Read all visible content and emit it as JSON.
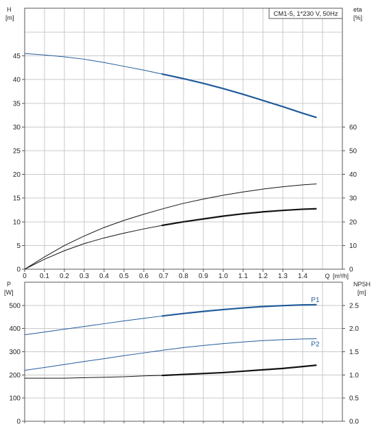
{
  "chart_data": [
    {
      "type": "line",
      "title": "CM1-5, 1*230 V, 50Hz",
      "xlabel": "Q",
      "xunit": "[m³/h]",
      "ylabel_left": "H",
      "yunit_left": "[m]",
      "ylabel_right": "eta",
      "yunit_right": "[%]",
      "xlim": [
        0,
        1.6
      ],
      "ylim_left": [
        0,
        50
      ],
      "ylim_right": [
        0,
        100
      ],
      "x_ticks": [
        "0",
        "0.1",
        "0.2",
        "0.3",
        "0.4",
        "0.5",
        "0.6",
        "0.7",
        "0.8",
        "0.9",
        "1.0",
        "1.1",
        "1.2",
        "1.3",
        "1.4"
      ],
      "y_ticks_left": [
        "0",
        "5",
        "10",
        "15",
        "20",
        "25",
        "30",
        "35",
        "40",
        "45"
      ],
      "y_ticks_right": [
        "0",
        "10",
        "20",
        "30",
        "40",
        "50",
        "60"
      ],
      "grid": true,
      "series": [
        {
          "color": "#1f5a9a",
          "axis": "left",
          "x": [
            0,
            0.1,
            0.2,
            0.3,
            0.4,
            0.5,
            0.6,
            0.7,
            0.8,
            0.9,
            1.0,
            1.1,
            1.2,
            1.3,
            1.4,
            1.47
          ],
          "values": [
            45.5,
            45.2,
            44.8,
            44.3,
            43.6,
            42.8,
            42.0,
            41.1,
            40.2,
            39.2,
            38.1,
            36.9,
            35.6,
            34.3,
            32.9,
            32.0
          ],
          "bold_from": 0.69
        },
        {
          "color": "#111111",
          "axis": "right",
          "x": [
            0,
            0.1,
            0.2,
            0.3,
            0.4,
            0.5,
            0.6,
            0.7,
            0.8,
            0.9,
            1.0,
            1.1,
            1.2,
            1.3,
            1.4,
            1.47
          ],
          "values": [
            0,
            5.2,
            10.0,
            14.0,
            17.6,
            20.6,
            23.2,
            25.6,
            27.8,
            29.6,
            31.2,
            32.6,
            33.8,
            34.8,
            35.6,
            36.0
          ]
        },
        {
          "color": "#111111",
          "axis": "right",
          "x": [
            0,
            0.1,
            0.2,
            0.3,
            0.4,
            0.5,
            0.6,
            0.7,
            0.8,
            0.9,
            1.0,
            1.1,
            1.2,
            1.3,
            1.4,
            1.47
          ],
          "values": [
            0,
            4.2,
            7.8,
            10.8,
            13.2,
            15.2,
            17.0,
            18.6,
            20.0,
            21.2,
            22.4,
            23.4,
            24.2,
            24.8,
            25.3,
            25.5
          ],
          "bold_from": 0.69
        }
      ]
    },
    {
      "type": "line",
      "ylabel_left": "P",
      "yunit_left": "[W]",
      "ylabel_right": "NPSH",
      "yunit_right": "[m]",
      "xlim": [
        0,
        1.6
      ],
      "ylim_left": [
        0,
        600
      ],
      "ylim_right": [
        0,
        3.0
      ],
      "y_ticks_left": [
        "0",
        "100",
        "200",
        "300",
        "400",
        "500"
      ],
      "y_ticks_right": [
        "0.0",
        "0.5",
        "1.0",
        "1.5",
        "2.0",
        "2.5"
      ],
      "grid": true,
      "series": [
        {
          "name": "P1",
          "color": "#1f5a9a",
          "axis": "left",
          "x": [
            0,
            0.1,
            0.2,
            0.3,
            0.4,
            0.5,
            0.6,
            0.7,
            0.8,
            0.9,
            1.0,
            1.1,
            1.2,
            1.3,
            1.4,
            1.47
          ],
          "values": [
            373,
            385,
            397,
            409,
            421,
            433,
            444,
            455,
            465,
            474,
            482,
            489,
            495,
            499,
            502,
            503
          ],
          "bold_from": 0.69
        },
        {
          "name": "P2",
          "color": "#1f5a9a",
          "axis": "left",
          "x": [
            0,
            0.1,
            0.2,
            0.3,
            0.4,
            0.5,
            0.6,
            0.7,
            0.8,
            0.9,
            1.0,
            1.1,
            1.2,
            1.3,
            1.4,
            1.47
          ],
          "values": [
            220,
            232,
            245,
            258,
            270,
            283,
            295,
            307,
            318,
            327,
            335,
            342,
            348,
            352,
            355,
            356
          ]
        },
        {
          "color": "#111111",
          "axis": "right",
          "x": [
            0,
            0.1,
            0.2,
            0.3,
            0.4,
            0.5,
            0.6,
            0.7,
            0.8,
            0.9,
            1.0,
            1.1,
            1.2,
            1.3,
            1.4,
            1.47
          ],
          "values": [
            0.93,
            0.93,
            0.93,
            0.94,
            0.95,
            0.96,
            0.98,
            0.99,
            1.01,
            1.03,
            1.05,
            1.08,
            1.11,
            1.14,
            1.18,
            1.21
          ],
          "bold_from": 0.69
        }
      ]
    }
  ]
}
